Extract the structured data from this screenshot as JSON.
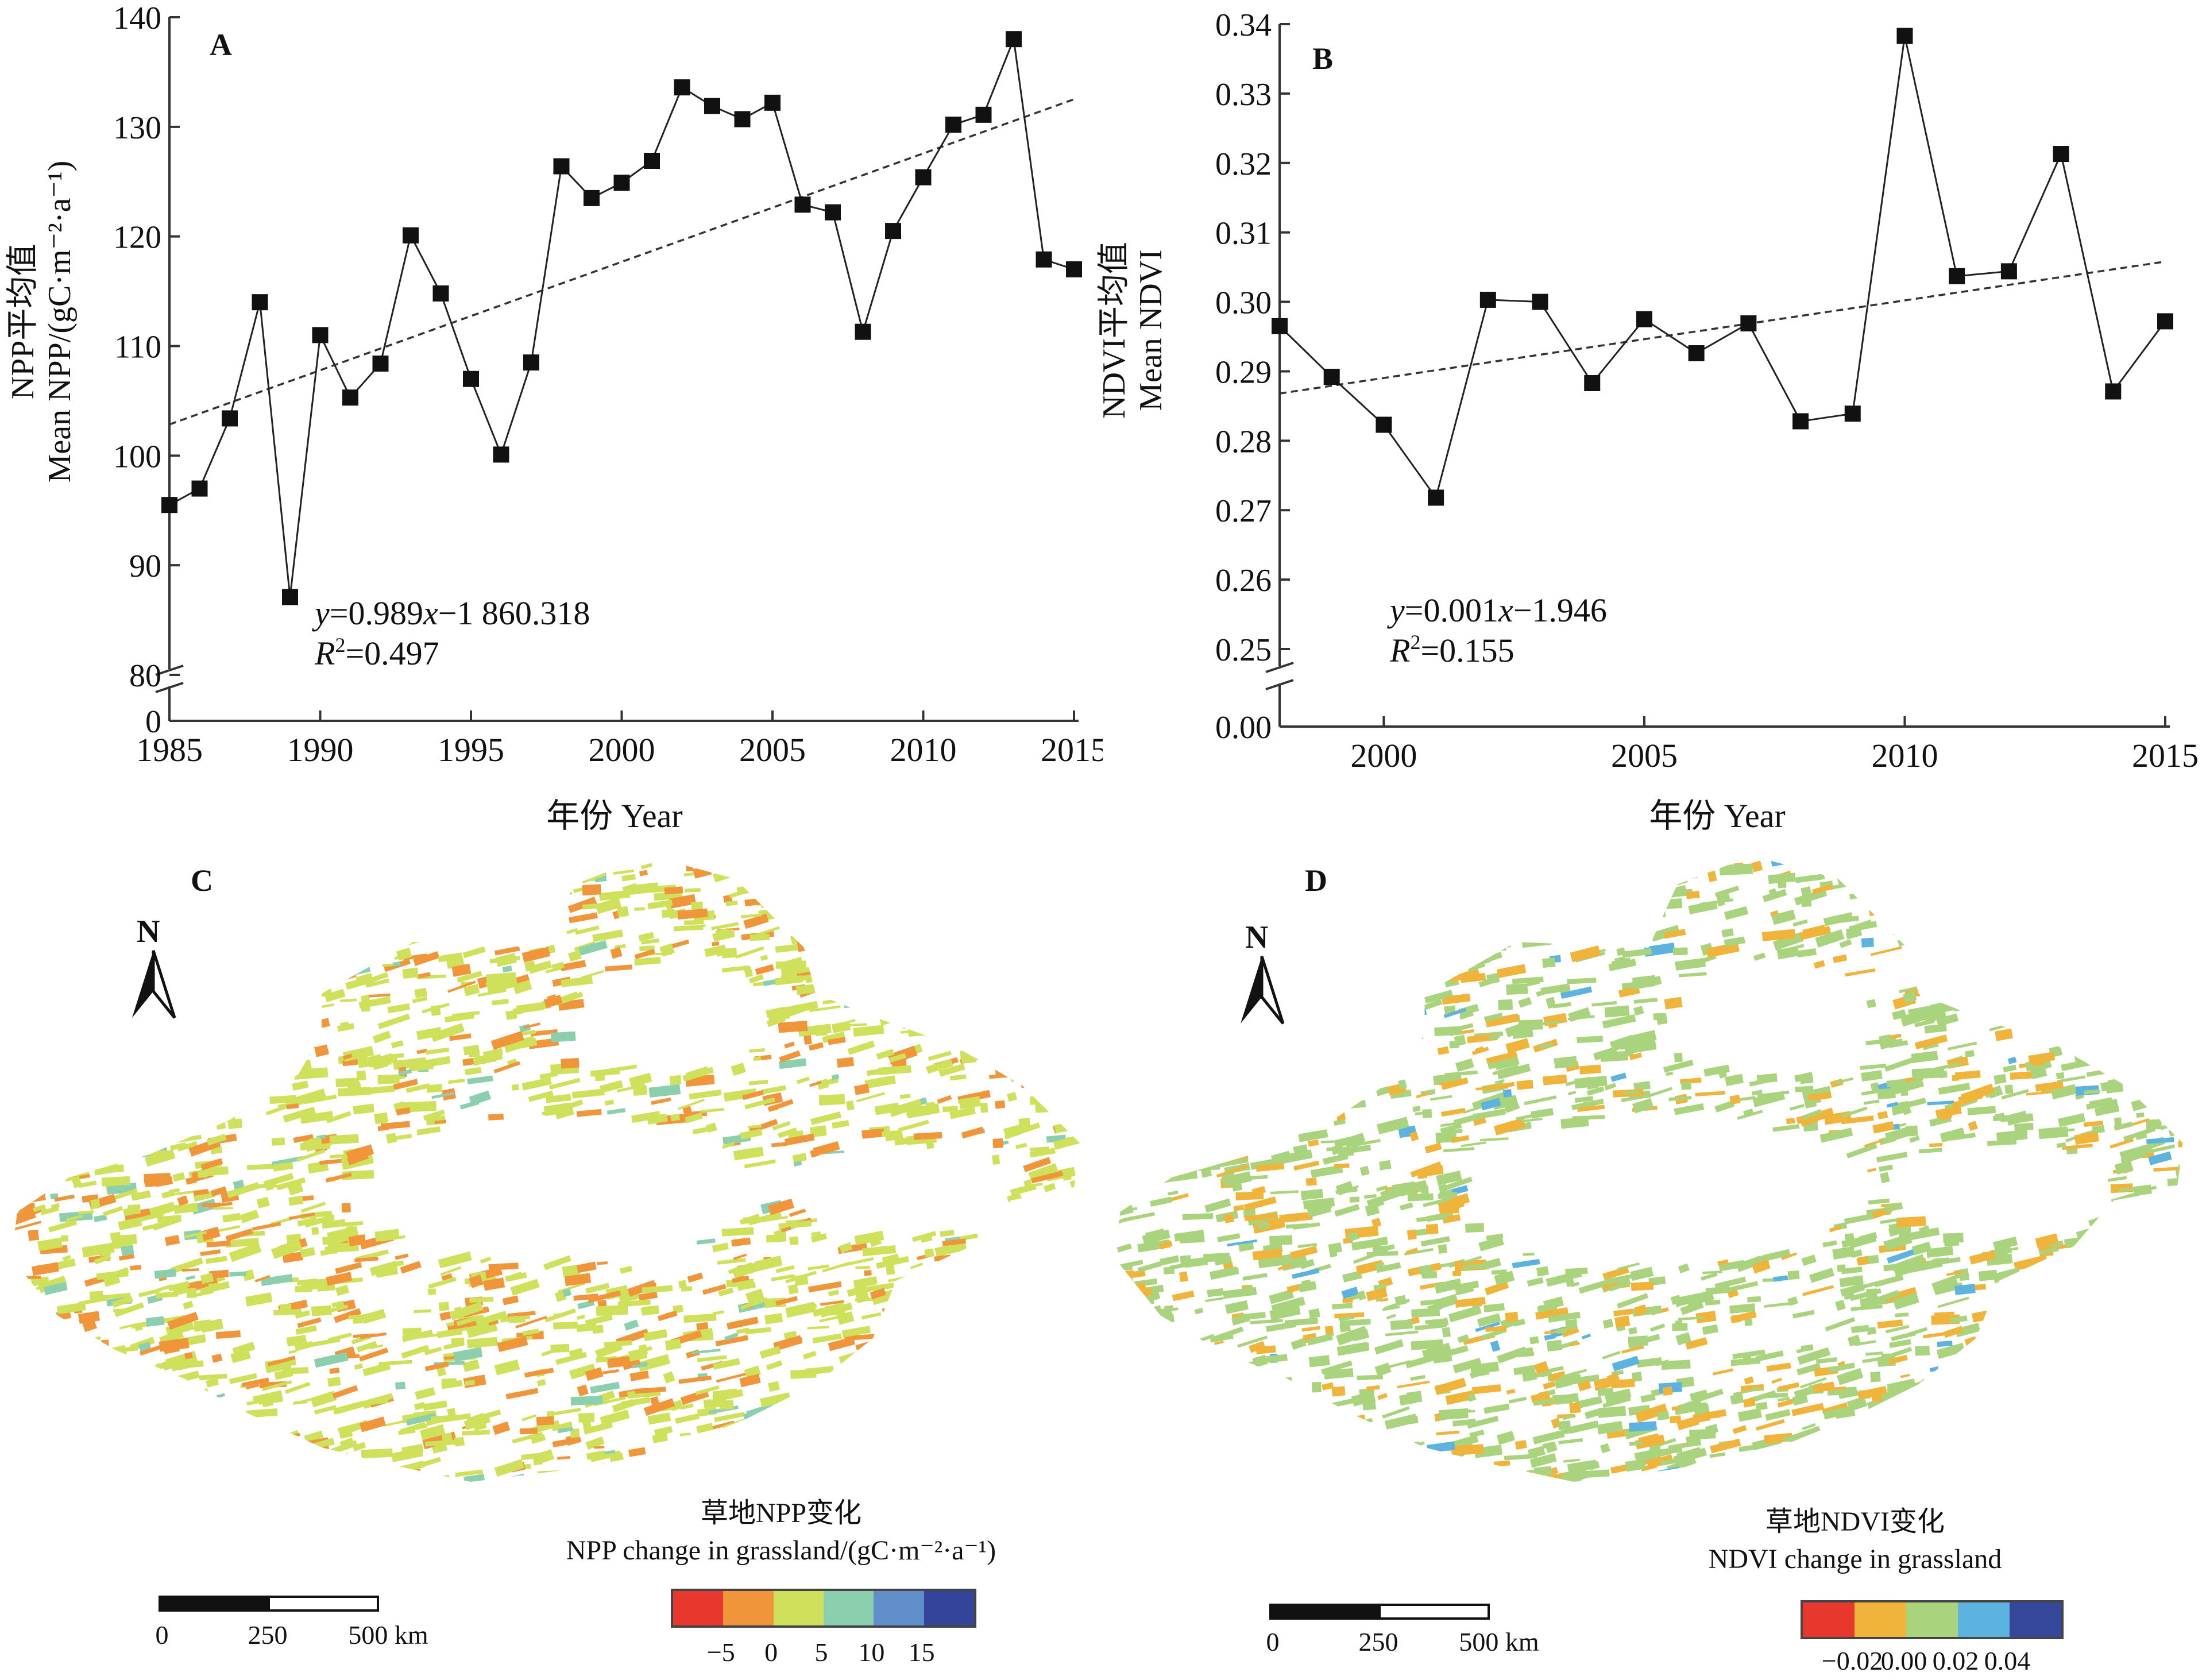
{
  "chart_data": [
    {
      "panel": "A",
      "type": "line",
      "ylabel_cn": "NPP平均值",
      "ylabel_en": "Mean NPP/(gC·m⁻²·a⁻¹)",
      "xlabel": "年份 Year",
      "x": [
        1985,
        1986,
        1987,
        1988,
        1989,
        1990,
        1991,
        1992,
        1993,
        1994,
        1995,
        1996,
        1997,
        1998,
        1999,
        2000,
        2001,
        2002,
        2003,
        2004,
        2005,
        2006,
        2007,
        2008,
        2009,
        2010,
        2011,
        2012,
        2013,
        2014,
        2015
      ],
      "series": [
        {
          "name": "Mean NPP",
          "values": [
            95.5,
            97.0,
            103.4,
            114.0,
            87.1,
            111.0,
            105.3,
            108.4,
            120.1,
            114.8,
            107.0,
            100.1,
            108.5,
            126.4,
            123.5,
            124.9,
            126.9,
            133.6,
            131.9,
            130.7,
            132.2,
            122.9,
            122.2,
            111.3,
            120.5,
            125.4,
            130.2,
            131.1,
            138.0,
            117.9,
            117.0
          ]
        }
      ],
      "trendline": {
        "slope": 0.989,
        "intercept": -1860.318,
        "style": "dashed"
      },
      "equation": "=0.989",
      "equation_parts": {
        "y": "y",
        "mid": "=0.989",
        "x": "x",
        "rest": "−1 860.318"
      },
      "r2_parts": {
        "r": "R",
        "sup": "2",
        "rest": "=0.497"
      },
      "ylim": [
        80,
        140
      ],
      "yticks": [
        "80",
        "90",
        "100",
        "110",
        "120",
        "130",
        "140"
      ],
      "ybreak_label": "0",
      "xlim": [
        1985,
        2015
      ],
      "xticks": [
        "1985",
        "1990",
        "1995",
        "2000",
        "2005",
        "2010",
        "2015"
      ],
      "grid": false,
      "legend": "none"
    },
    {
      "panel": "B",
      "type": "line",
      "ylabel_cn": "NDVI平均值",
      "ylabel_en": "Mean NDVI",
      "xlabel": "年份 Year",
      "x": [
        1998,
        1999,
        2000,
        2001,
        2002,
        2003,
        2004,
        2005,
        2006,
        2007,
        2008,
        2009,
        2010,
        2011,
        2012,
        2013,
        2014,
        2015
      ],
      "series": [
        {
          "name": "Mean NDVI",
          "values": [
            0.2965,
            0.2892,
            0.2823,
            0.2718,
            0.3003,
            0.3,
            0.2883,
            0.2975,
            0.2926,
            0.2969,
            0.2828,
            0.2839,
            0.3383,
            0.3037,
            0.3044,
            0.3213,
            0.2871,
            0.2972
          ]
        }
      ],
      "trendline": {
        "slope": 0.001,
        "intercept": -1.946,
        "style": "dashed",
        "start_value": 0.2868,
        "end_value": 0.3058
      },
      "equation_parts": {
        "y": "y",
        "mid": "=0.001",
        "x": "x",
        "rest": "−1.946"
      },
      "r2_parts": {
        "r": "R",
        "sup": "2",
        "rest": "=0.155"
      },
      "ylim": [
        0.24,
        0.34
      ],
      "yticks": [
        "0.25",
        "0.26",
        "0.27",
        "0.28",
        "0.29",
        "0.30",
        "0.31",
        "0.32",
        "0.33",
        "0.34"
      ],
      "ybreak_label": "0.00",
      "xlim": [
        1998,
        2015
      ],
      "xticks": [
        "2000",
        "2005",
        "2010",
        "2015"
      ],
      "grid": false,
      "legend": "none"
    }
  ],
  "maps": [
    {
      "panel": "C",
      "north_label": "N",
      "legend_title_cn": "草地NPP变化",
      "legend_title_en": "NPP change in grassland/(gC·m⁻²·a⁻¹)",
      "legend_colors": [
        "#e8372c",
        "#f0953a",
        "#cfe05a",
        "#8ccfae",
        "#5f8ec8",
        "#33449a"
      ],
      "legend_ticks": [
        "−5",
        "0",
        "5",
        "10",
        "15"
      ],
      "scale_labels": [
        "0",
        "250",
        "500 km"
      ],
      "dominant_colors": [
        "#cfe05a",
        "#f0953a",
        "#8ccfae"
      ]
    },
    {
      "panel": "D",
      "north_label": "N",
      "legend_title_cn": "草地NDVI变化",
      "legend_title_en": "NDVI change in grassland",
      "legend_colors": [
        "#e8372c",
        "#f0b43a",
        "#a9d47d",
        "#5cb3e0",
        "#34479a"
      ],
      "legend_ticks": [
        "−0.02",
        "0.00",
        "0.02",
        "0.04"
      ],
      "scale_labels": [
        "0",
        "250",
        "500 km"
      ],
      "dominant_colors": [
        "#a9d47d",
        "#f0b43a",
        "#5cb3e0"
      ]
    }
  ]
}
